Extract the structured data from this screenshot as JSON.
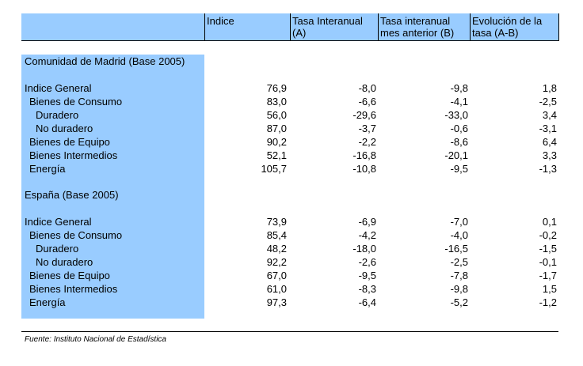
{
  "headers": {
    "col1": "Indice",
    "col2_line1": "Tasa Interanual",
    "col2_line2": "(A)",
    "col3_line1": "Tasa interanual",
    "col3_line2": "mes anterior (B)",
    "col4_line1": "Evolución de la",
    "col4_line2": "tasa (A-B)"
  },
  "sections": [
    {
      "title": "Comunidad de Madrid (Base 2005)",
      "rows": [
        {
          "label": "Indice General",
          "indent": 0,
          "values": [
            "76,9",
            "-8,0",
            "-9,8",
            "1,8"
          ]
        },
        {
          "label": "Bienes de Consumo",
          "indent": 1,
          "values": [
            "83,0",
            "-6,6",
            "-4,1",
            "-2,5"
          ]
        },
        {
          "label": "Duradero",
          "indent": 2,
          "values": [
            "56,0",
            "-29,6",
            "-33,0",
            "3,4"
          ]
        },
        {
          "label": "No duradero",
          "indent": 2,
          "values": [
            "87,0",
            "-3,7",
            "-0,6",
            "-3,1"
          ]
        },
        {
          "label": "Bienes de Equipo",
          "indent": 1,
          "values": [
            "90,2",
            "-2,2",
            "-8,6",
            "6,4"
          ]
        },
        {
          "label": "Bienes Intermedios",
          "indent": 1,
          "values": [
            "52,1",
            "-16,8",
            "-20,1",
            "3,3"
          ]
        },
        {
          "label": "Energía",
          "indent": 1,
          "values": [
            "105,7",
            "-10,8",
            "-9,5",
            "-1,3"
          ]
        }
      ]
    },
    {
      "title": "España (Base 2005)",
      "rows": [
        {
          "label": "Indice General",
          "indent": 0,
          "values": [
            "73,9",
            "-6,9",
            "-7,0",
            "0,1"
          ]
        },
        {
          "label": "Bienes de Consumo",
          "indent": 1,
          "values": [
            "85,4",
            "-4,2",
            "-4,0",
            "-0,2"
          ]
        },
        {
          "label": "Duradero",
          "indent": 2,
          "values": [
            "48,2",
            "-18,0",
            "-16,5",
            "-1,5"
          ]
        },
        {
          "label": "No duradero",
          "indent": 2,
          "values": [
            "92,2",
            "-2,6",
            "-2,5",
            "-0,1"
          ]
        },
        {
          "label": "Bienes de Equipo",
          "indent": 1,
          "values": [
            "67,0",
            "-9,5",
            "-7,8",
            "-1,7"
          ]
        },
        {
          "label": "Bienes Intermedios",
          "indent": 1,
          "values": [
            "61,0",
            "-8,3",
            "-9,8",
            "1,5"
          ]
        },
        {
          "label": "Energía",
          "indent": 1,
          "values": [
            "97,3",
            "-6,4",
            "-5,2",
            "-1,2"
          ]
        }
      ]
    }
  ],
  "footer": "Fuente: Instituto Nacional de Estadística",
  "colors": {
    "header_bg": "#99ccff",
    "stub_bg": "#99ccff"
  }
}
